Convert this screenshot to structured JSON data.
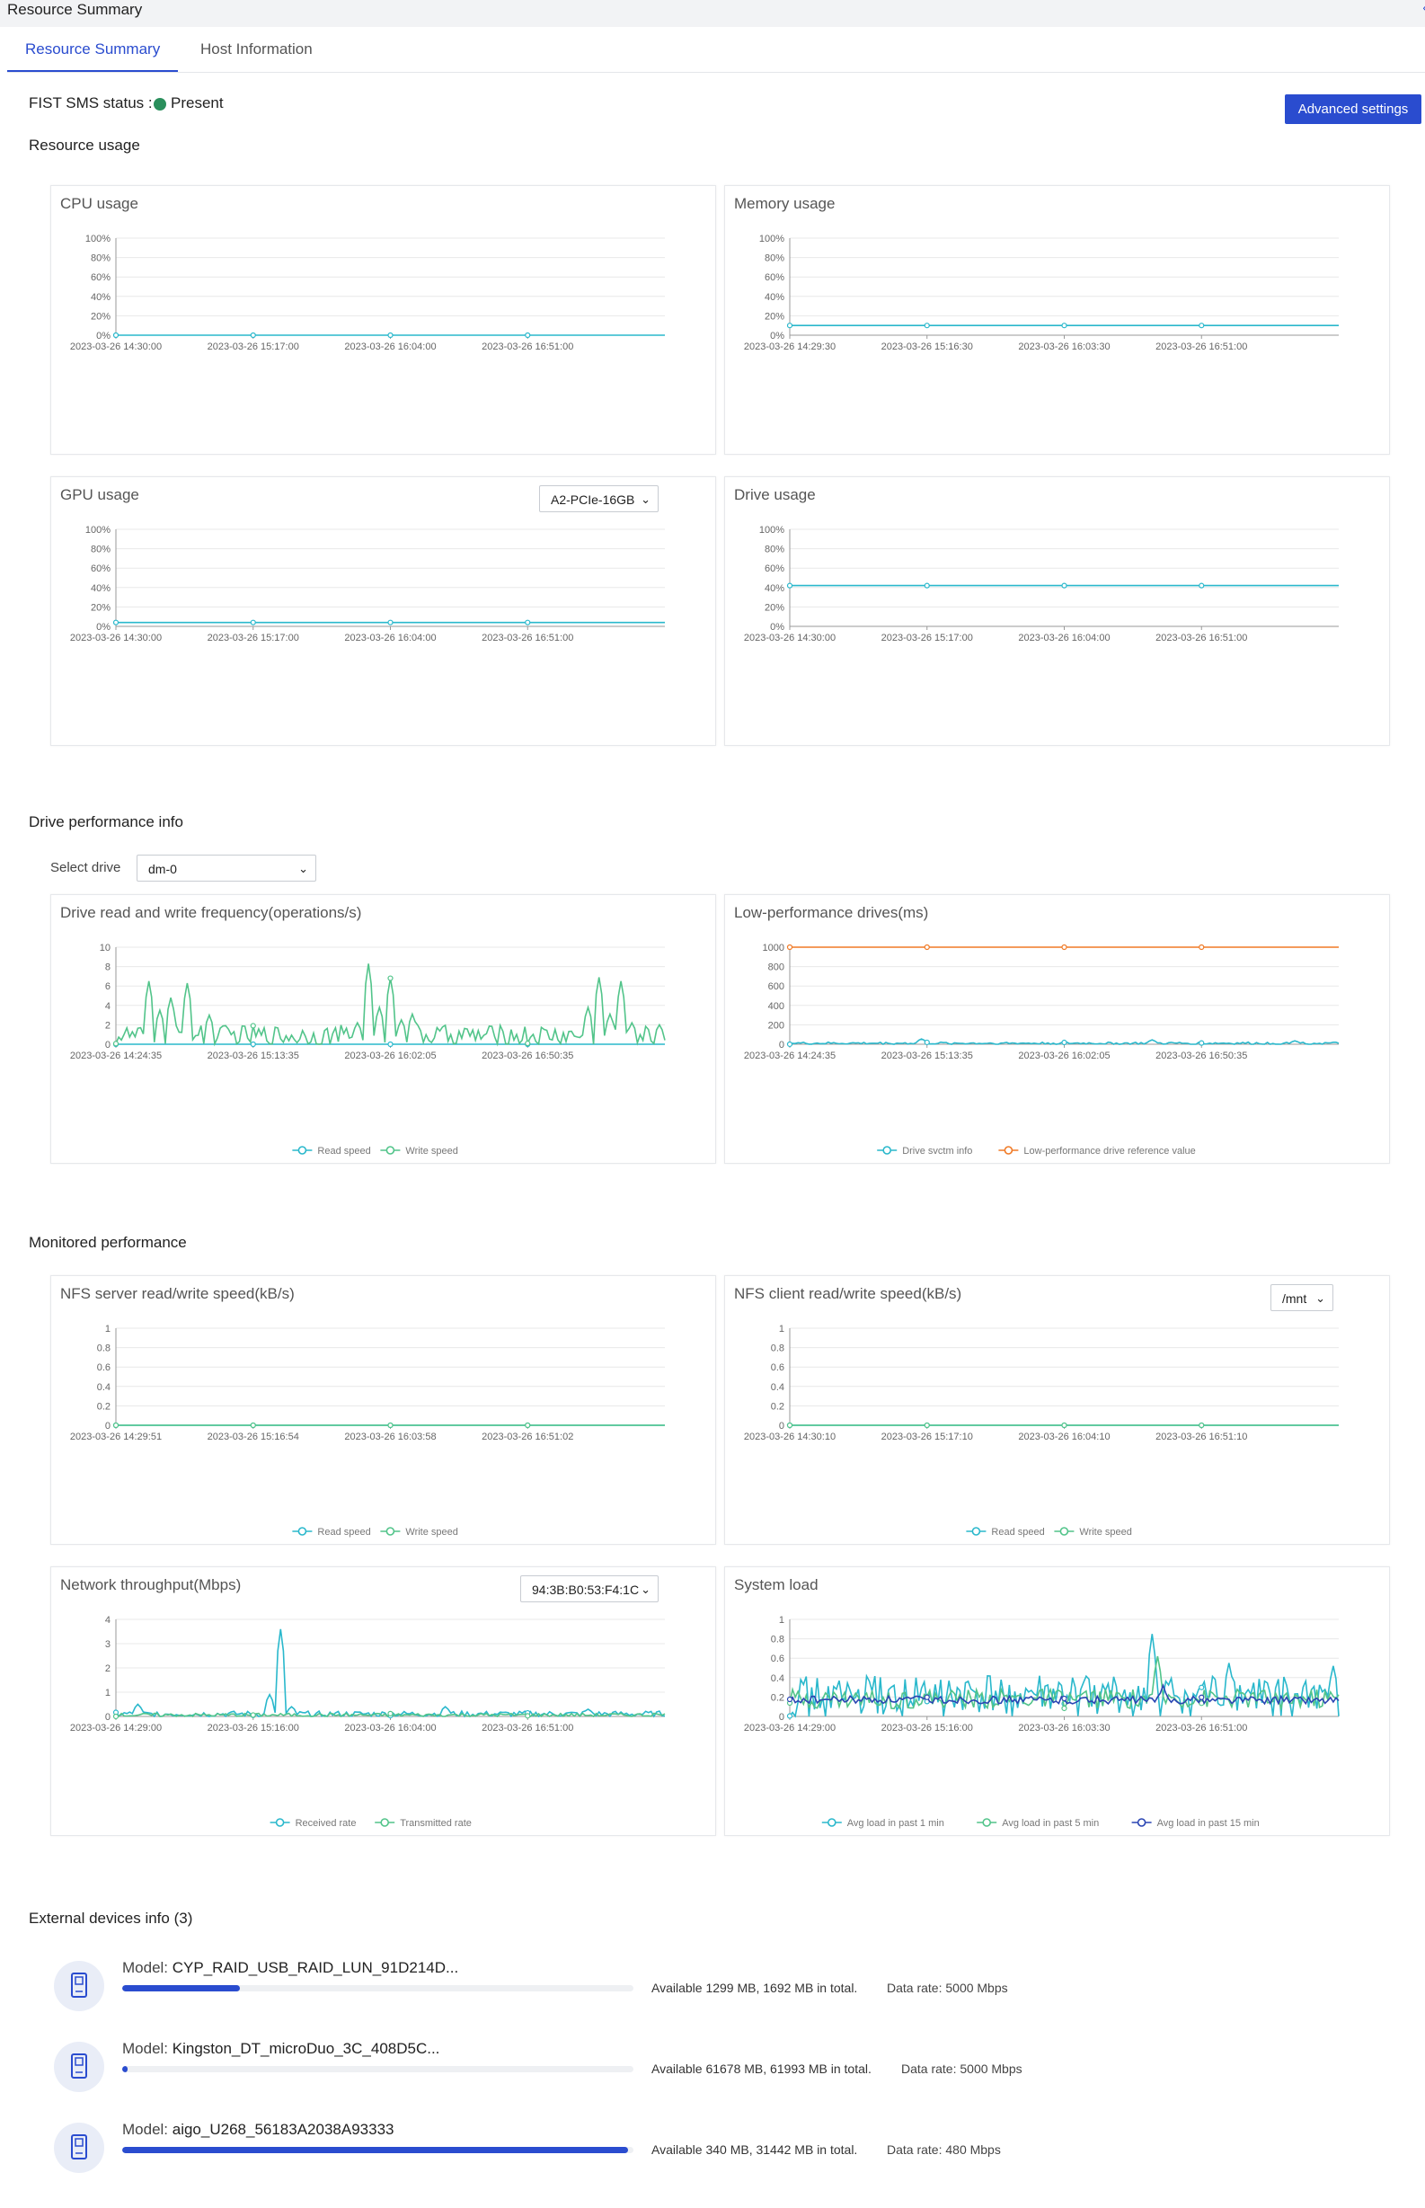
{
  "window": {
    "title": "Resource Summary"
  },
  "tabs": [
    {
      "label": "Resource Summary"
    },
    {
      "label": "Host Information"
    }
  ],
  "status": {
    "label": "FIST SMS status :",
    "value": "Present",
    "color": "#2a8f5c"
  },
  "buttons": {
    "advanced": "Advanced settings"
  },
  "sections": {
    "resource_usage": "Resource usage",
    "drive_perf": "Drive performance info",
    "monitored": "Monitored performance",
    "external": "External devices info (3)"
  },
  "select_drive": {
    "label": "Select drive",
    "value": "dm-0"
  },
  "colors": {
    "accent": "#2a4ccf",
    "teal": "#2ab8cc",
    "green": "#52c48a",
    "orange": "#f07a26",
    "navy": "#2a45b3"
  },
  "chart_data": [
    {
      "id": "cpu",
      "type": "line",
      "title": "CPU usage",
      "ylim": [
        0,
        100
      ],
      "yticks": [
        "0%",
        "20%",
        "40%",
        "60%",
        "80%",
        "100%"
      ],
      "xticks": [
        "2023-03-26 14:30:00",
        "2023-03-26 15:17:00",
        "2023-03-26 16:04:00",
        "2023-03-26 16:51:00"
      ],
      "series": [
        {
          "color": "#2ab8cc",
          "constant": 0
        }
      ]
    },
    {
      "id": "mem",
      "type": "line",
      "title": "Memory usage",
      "ylim": [
        0,
        100
      ],
      "yticks": [
        "0%",
        "20%",
        "40%",
        "60%",
        "80%",
        "100%"
      ],
      "xticks": [
        "2023-03-26 14:29:30",
        "2023-03-26 15:16:30",
        "2023-03-26 16:03:30",
        "2023-03-26 16:51:00"
      ],
      "series": [
        {
          "color": "#2ab8cc",
          "constant": 10
        }
      ]
    },
    {
      "id": "gpu",
      "type": "line",
      "title": "GPU usage",
      "ylim": [
        0,
        100
      ],
      "dropdown": "A2-PCIe-16GB",
      "yticks": [
        "0%",
        "20%",
        "40%",
        "60%",
        "80%",
        "100%"
      ],
      "xticks": [
        "2023-03-26 14:30:00",
        "2023-03-26 15:17:00",
        "2023-03-26 16:04:00",
        "2023-03-26 16:51:00"
      ],
      "series": [
        {
          "color": "#2ab8cc",
          "constant": 4
        }
      ]
    },
    {
      "id": "drive",
      "type": "line",
      "title": "Drive usage",
      "ylim": [
        0,
        100
      ],
      "yticks": [
        "0%",
        "20%",
        "40%",
        "60%",
        "80%",
        "100%"
      ],
      "xticks": [
        "2023-03-26 14:30:00",
        "2023-03-26 15:17:00",
        "2023-03-26 16:04:00",
        "2023-03-26 16:51:00"
      ],
      "series": [
        {
          "color": "#2ab8cc",
          "constant": 42
        }
      ]
    },
    {
      "id": "rw",
      "type": "line",
      "title": "Drive read and write frequency(operations/s)",
      "ylim": [
        0,
        10
      ],
      "yticks": [
        "0",
        "2",
        "4",
        "6",
        "8",
        "10"
      ],
      "xticks": [
        "2023-03-26 14:24:35",
        "2023-03-26 15:13:35",
        "2023-03-26 16:02:05",
        "2023-03-26 16:50:35"
      ],
      "series": [
        {
          "name": "Read speed",
          "color": "#2ab8cc",
          "constant": 0
        },
        {
          "name": "Write speed",
          "color": "#52c48a",
          "noisy": true,
          "base": 0.9,
          "spikes": [
            [
              0.06,
              6.5
            ],
            [
              0.08,
              3.5
            ],
            [
              0.1,
              4.8
            ],
            [
              0.13,
              6.3
            ],
            [
              0.17,
              3.0
            ],
            [
              0.44,
              2.2
            ],
            [
              0.46,
              8.3
            ],
            [
              0.48,
              3.8
            ],
            [
              0.5,
              6.8
            ],
            [
              0.52,
              2.5
            ],
            [
              0.54,
              3.1
            ],
            [
              0.86,
              3.8
            ],
            [
              0.88,
              6.9
            ],
            [
              0.9,
              3.1
            ],
            [
              0.92,
              6.5
            ],
            [
              0.94,
              2.2
            ],
            [
              0.99,
              2.0
            ]
          ]
        }
      ]
    },
    {
      "id": "lowperf",
      "type": "line",
      "title": "Low-performance drives(ms)",
      "ylim": [
        0,
        1000
      ],
      "yticks": [
        "0",
        "200",
        "400",
        "600",
        "800",
        "1000"
      ],
      "xticks": [
        "2023-03-26 14:24:35",
        "2023-03-26 15:13:35",
        "2023-03-26 16:02:05",
        "2023-03-26 16:50:35"
      ],
      "series": [
        {
          "name": "Drive svctm info",
          "color": "#2ab8cc",
          "noisy": true,
          "base": 10,
          "spikes": [
            [
              0.24,
              55
            ],
            [
              0.66,
              45
            ],
            [
              0.92,
              35
            ]
          ]
        },
        {
          "name": "Low-performance drive reference value",
          "color": "#f07a26",
          "constant": 1000
        }
      ]
    },
    {
      "id": "nfss",
      "type": "line",
      "title": "NFS server read/write speed(kB/s)",
      "ylim": [
        0,
        1
      ],
      "yticks": [
        "0",
        "0.2",
        "0.4",
        "0.6",
        "0.8",
        "1"
      ],
      "xticks": [
        "2023-03-26 14:29:51",
        "2023-03-26 15:16:54",
        "2023-03-26 16:03:58",
        "2023-03-26 16:51:02"
      ],
      "series": [
        {
          "name": "Read speed",
          "color": "#2ab8cc",
          "constant": 0
        },
        {
          "name": "Write speed",
          "color": "#52c48a",
          "constant": 0
        }
      ]
    },
    {
      "id": "nfsc",
      "type": "line",
      "title": "NFS client read/write speed(kB/s)",
      "ylim": [
        0,
        1
      ],
      "dropdown": "/mnt",
      "yticks": [
        "0",
        "0.2",
        "0.4",
        "0.6",
        "0.8",
        "1"
      ],
      "xticks": [
        "2023-03-26 14:30:10",
        "2023-03-26 15:17:10",
        "2023-03-26 16:04:10",
        "2023-03-26 16:51:10"
      ],
      "series": [
        {
          "name": "Read speed",
          "color": "#2ab8cc",
          "constant": 0
        },
        {
          "name": "Write speed",
          "color": "#52c48a",
          "constant": 0
        }
      ]
    },
    {
      "id": "net",
      "type": "line",
      "title": "Network throughput(Mbps)",
      "ylim": [
        0,
        4
      ],
      "dropdown": "94:3B:B0:53:F4:1C",
      "yticks": [
        "0",
        "1",
        "2",
        "3",
        "4"
      ],
      "xticks": [
        "2023-03-26 14:29:00",
        "2023-03-26 15:16:00",
        "2023-03-26 16:04:00",
        "2023-03-26 16:51:00"
      ],
      "series": [
        {
          "name": "Received rate",
          "color": "#2ab8cc",
          "noisy": true,
          "base": 0.1,
          "spikes": [
            [
              0.04,
              0.5
            ],
            [
              0.28,
              0.9
            ],
            [
              0.3,
              3.6
            ],
            [
              0.32,
              0.4
            ],
            [
              0.6,
              0.4
            ],
            [
              0.86,
              0.3
            ]
          ]
        },
        {
          "name": "Transmitted rate",
          "color": "#52c48a",
          "noisy": true,
          "base": 0.06,
          "spikes": []
        }
      ]
    },
    {
      "id": "load",
      "type": "line",
      "title": "System load",
      "ylim": [
        0,
        1
      ],
      "yticks": [
        "0",
        "0.2",
        "0.4",
        "0.6",
        "0.8",
        "1"
      ],
      "xticks": [
        "2023-03-26 14:29:00",
        "2023-03-26 15:16:00",
        "2023-03-26 16:03:30",
        "2023-03-26 16:51:00"
      ],
      "series": [
        {
          "name": "Avg load in past 1 min",
          "color": "#2ab8cc",
          "noisy": true,
          "base": 0.2,
          "amp": 0.22,
          "spikes": [
            [
              0.66,
              0.85
            ],
            [
              0.8,
              0.55
            ],
            [
              0.99,
              0.52
            ]
          ]
        },
        {
          "name": "Avg load in past 5 min",
          "color": "#52c48a",
          "noisy": true,
          "base": 0.18,
          "amp": 0.1,
          "spikes": [
            [
              0.67,
              0.62
            ]
          ]
        },
        {
          "name": "Avg load in past 15 min",
          "color": "#2a45b3",
          "noisy": true,
          "base": 0.17,
          "amp": 0.04,
          "spikes": [
            [
              0.68,
              0.32
            ]
          ]
        }
      ]
    }
  ],
  "devices": [
    {
      "model_label": "Model: ",
      "model": "CYP_RAID_USB_RAID_LUN_91D214D...",
      "used": 0.23,
      "avail": "Available 1299 MB, 1692 MB in total.",
      "rate": "Data rate: 5000 Mbps"
    },
    {
      "model_label": "Model: ",
      "model": "Kingston_DT_microDuo_3C_408D5C...",
      "used": 0.01,
      "avail": "Available 61678 MB, 61993 MB in total.",
      "rate": "Data rate: 5000 Mbps"
    },
    {
      "model_label": "Model: ",
      "model": "aigo_U268_56183A2038A93333",
      "used": 0.99,
      "avail": "Available 340 MB, 31442 MB in total.",
      "rate": "Data rate: 480 Mbps"
    }
  ]
}
